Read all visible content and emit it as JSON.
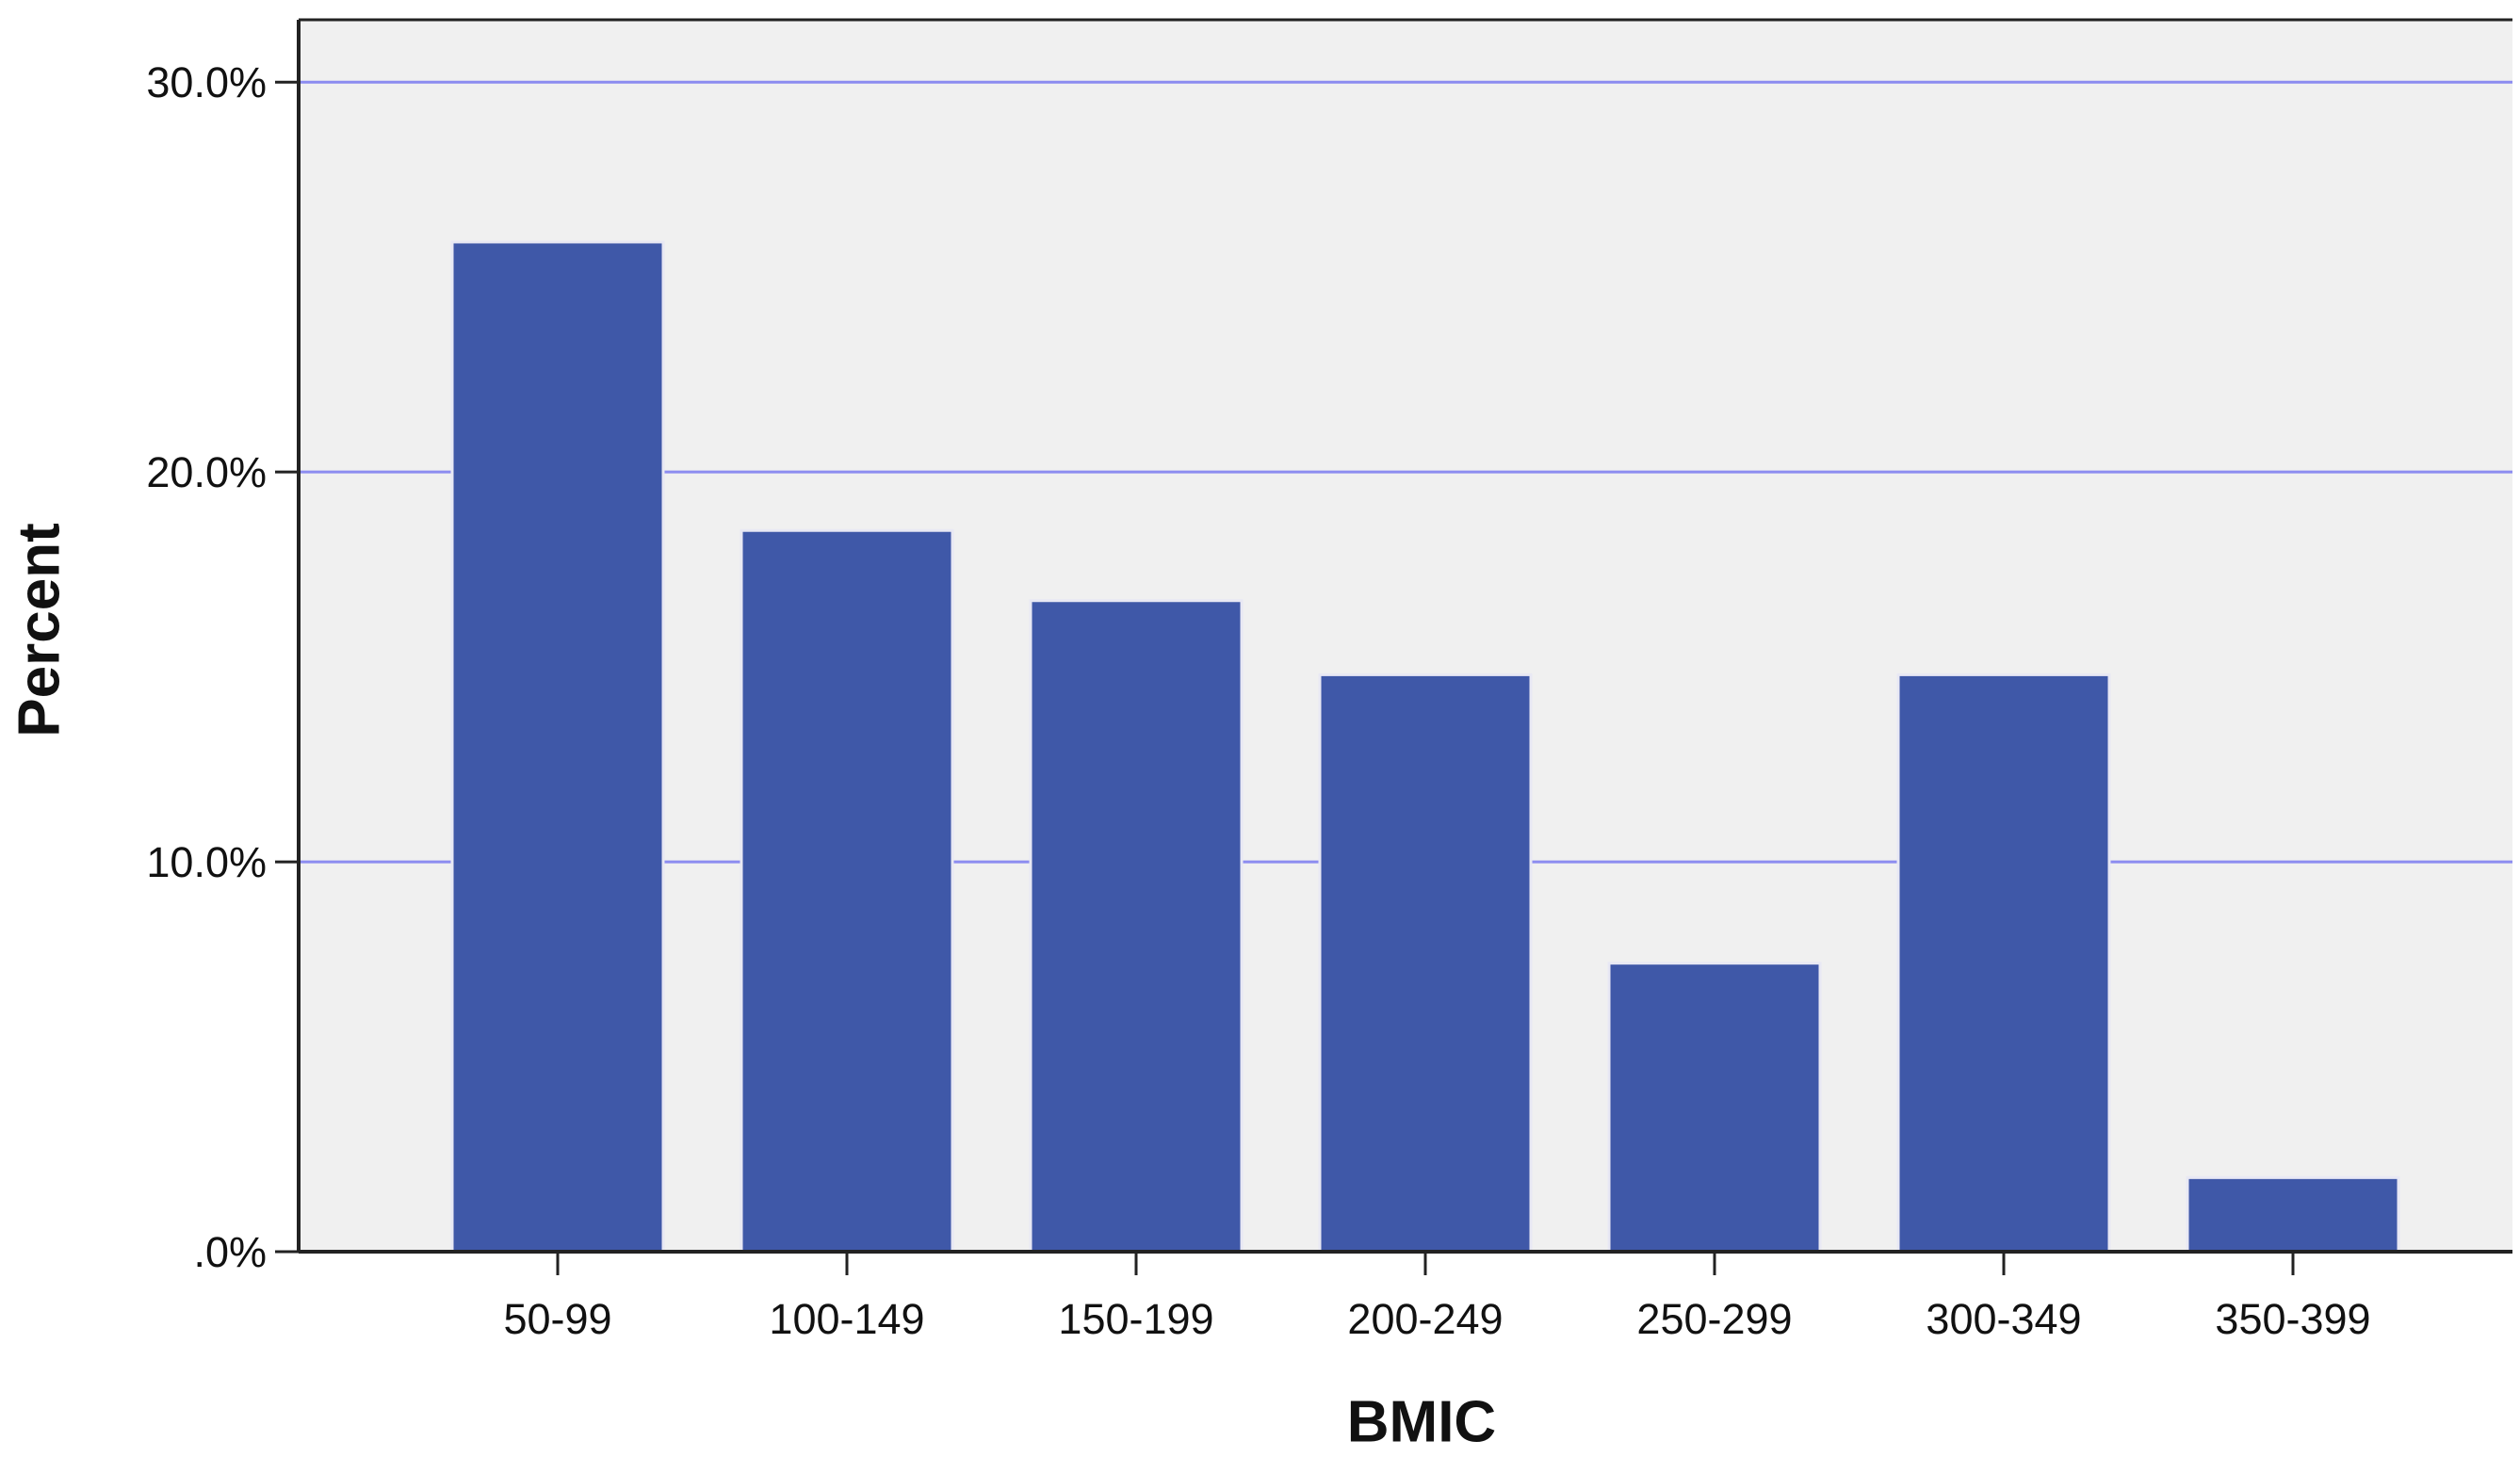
{
  "chart_data": {
    "type": "bar",
    "x_label": "BMIC",
    "y_label": "Percent",
    "categories": [
      "50-99",
      "100-149",
      "150-199",
      "200-249",
      "250-299",
      "300-349",
      "350-399"
    ],
    "values": [
      25.9,
      18.5,
      16.7,
      14.8,
      7.4,
      14.8,
      1.9
    ],
    "color": "#3f58a8",
    "ylim": [
      0,
      31.6
    ],
    "yticks": [
      {
        "value": 0,
        "label": ".0%"
      },
      {
        "value": 10,
        "label": "10.0%"
      },
      {
        "value": 20,
        "label": "20.0%"
      },
      {
        "value": 30,
        "label": "30.0%"
      }
    ],
    "grid": true
  }
}
